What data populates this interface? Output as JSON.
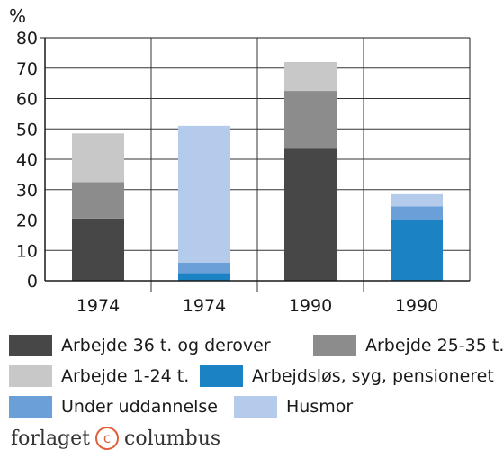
{
  "chart_data": {
    "type": "bar",
    "stacked": true,
    "ylabel": "%",
    "ylim": [
      0,
      80
    ],
    "yticks": [
      0,
      10,
      20,
      30,
      40,
      50,
      60,
      70,
      80
    ],
    "grid": true,
    "categories": [
      "1974",
      "1974",
      "1990",
      "1990"
    ],
    "series": [
      {
        "name": "Arbejde 36 t. og derover",
        "color": "#474747",
        "values": [
          20.5,
          0,
          43.5,
          0
        ]
      },
      {
        "name": "Arbejde 25-35 t.",
        "color": "#8c8c8c",
        "values": [
          12,
          0,
          19,
          0
        ]
      },
      {
        "name": "Arbejde 1-24 t.",
        "color": "#c8c8c8",
        "values": [
          16,
          0,
          9.5,
          0
        ]
      },
      {
        "name": "Arbejdsløs, syg, pensioneret",
        "color": "#1b82c4",
        "values": [
          0,
          2.5,
          0,
          20
        ]
      },
      {
        "name": "Under uddannelse",
        "color": "#6a9fd8",
        "values": [
          0,
          3.5,
          0,
          4.5
        ]
      },
      {
        "name": "Husmor",
        "color": "#b4cbec",
        "values": [
          0,
          45,
          0,
          4
        ]
      }
    ]
  },
  "legend": [
    {
      "label": "Arbejde 36 t. og derover",
      "color": "#474747"
    },
    {
      "label": "Arbejde 25-35 t.",
      "color": "#8c8c8c"
    },
    {
      "label": "Arbejde 1-24 t.",
      "color": "#c8c8c8"
    },
    {
      "label": "Arbejdsløs, syg, pensioneret",
      "color": "#1b82c4"
    },
    {
      "label": "Under uddannelse",
      "color": "#6a9fd8"
    },
    {
      "label": "Husmor",
      "color": "#b4cbec"
    }
  ],
  "footer": {
    "publisher_left": "forlaget",
    "copyright_symbol": "c",
    "publisher_right": "columbus",
    "accent_color": "#e0603b"
  }
}
